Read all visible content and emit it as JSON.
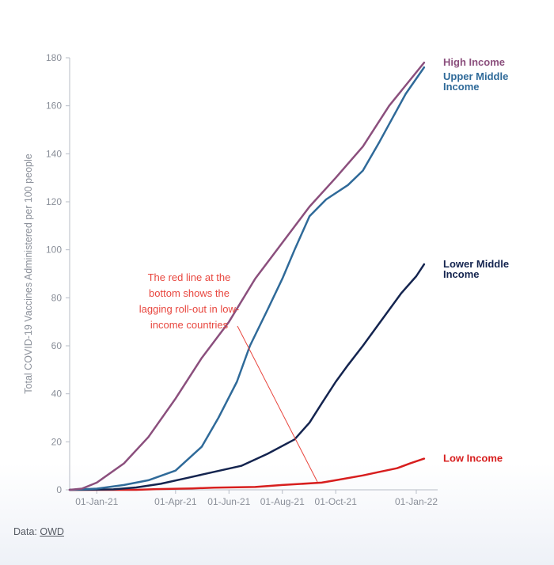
{
  "chart_data": {
    "type": "line",
    "title": "",
    "xlabel": "",
    "ylabel": "Total COVID-19 Vaccines Administered per 100 people",
    "ylim": [
      0,
      180
    ],
    "yticks": [
      0,
      20,
      40,
      60,
      80,
      100,
      120,
      140,
      160,
      180
    ],
    "xlim": [
      "2020-12-01",
      "2022-01-20"
    ],
    "xticks": [
      {
        "date": "2021-01-01",
        "label": "01-Jan-21"
      },
      {
        "date": "2021-04-01",
        "label": "01-Apr-21"
      },
      {
        "date": "2021-06-01",
        "label": "01-Jun-21"
      },
      {
        "date": "2021-08-01",
        "label": "01-Aug-21"
      },
      {
        "date": "2021-10-01",
        "label": "01-Oct-21"
      },
      {
        "date": "2022-01-01",
        "label": "01-Jan-22"
      }
    ],
    "grid": false,
    "series": [
      {
        "name": "Low Income",
        "label_lines": [
          "Low Income"
        ],
        "color": "#d71e1e",
        "points": [
          [
            "2020-12-01",
            0
          ],
          [
            "2021-02-15",
            0
          ],
          [
            "2021-03-10",
            0.3
          ],
          [
            "2021-04-20",
            0.6
          ],
          [
            "2021-05-15",
            0.9
          ],
          [
            "2021-07-01",
            1.2
          ],
          [
            "2021-08-01",
            2
          ],
          [
            "2021-09-15",
            3
          ],
          [
            "2021-10-01",
            4
          ],
          [
            "2021-11-01",
            6
          ],
          [
            "2021-11-20",
            7.5
          ],
          [
            "2021-12-10",
            9
          ],
          [
            "2021-12-25",
            11
          ],
          [
            "2022-01-10",
            13
          ]
        ]
      },
      {
        "name": "Lower Middle Income",
        "label_lines": [
          "Lower Middle",
          "Income"
        ],
        "color": "#14244f",
        "points": [
          [
            "2020-12-01",
            0
          ],
          [
            "2021-01-20",
            0.2
          ],
          [
            "2021-02-15",
            1
          ],
          [
            "2021-03-15",
            2.5
          ],
          [
            "2021-04-15",
            5
          ],
          [
            "2021-05-15",
            7.5
          ],
          [
            "2021-06-15",
            10
          ],
          [
            "2021-07-15",
            15
          ],
          [
            "2021-08-15",
            21
          ],
          [
            "2021-09-01",
            28
          ],
          [
            "2021-09-15",
            36
          ],
          [
            "2021-10-01",
            45
          ],
          [
            "2021-10-15",
            52
          ],
          [
            "2021-11-01",
            60
          ],
          [
            "2021-11-15",
            67
          ],
          [
            "2021-12-01",
            75
          ],
          [
            "2021-12-15",
            82
          ],
          [
            "2022-01-01",
            89
          ],
          [
            "2022-01-10",
            94
          ]
        ]
      },
      {
        "name": "Upper Middle Income",
        "label_lines": [
          "Upper Middle",
          "Income"
        ],
        "color": "#2f6a99",
        "points": [
          [
            "2020-12-01",
            0
          ],
          [
            "2021-01-01",
            0.5
          ],
          [
            "2021-02-01",
            2
          ],
          [
            "2021-03-01",
            4
          ],
          [
            "2021-04-01",
            8
          ],
          [
            "2021-05-01",
            18
          ],
          [
            "2021-05-20",
            30
          ],
          [
            "2021-06-10",
            45
          ],
          [
            "2021-06-25",
            60
          ],
          [
            "2021-07-15",
            75
          ],
          [
            "2021-08-01",
            88
          ],
          [
            "2021-08-15",
            100
          ],
          [
            "2021-09-01",
            114
          ],
          [
            "2021-09-20",
            121
          ],
          [
            "2021-10-15",
            127
          ],
          [
            "2021-11-01",
            133
          ],
          [
            "2021-11-20",
            145
          ],
          [
            "2021-12-05",
            155
          ],
          [
            "2021-12-20",
            165
          ],
          [
            "2022-01-10",
            176
          ]
        ]
      },
      {
        "name": "High Income",
        "label_lines": [
          "High Income"
        ],
        "color": "#8b4f7d",
        "points": [
          [
            "2020-12-01",
            0
          ],
          [
            "2020-12-15",
            0.5
          ],
          [
            "2021-01-01",
            3
          ],
          [
            "2021-02-01",
            11
          ],
          [
            "2021-03-01",
            22
          ],
          [
            "2021-04-01",
            38
          ],
          [
            "2021-05-01",
            55
          ],
          [
            "2021-06-01",
            70
          ],
          [
            "2021-07-01",
            88
          ],
          [
            "2021-08-01",
            103
          ],
          [
            "2021-09-01",
            118
          ],
          [
            "2021-10-01",
            130
          ],
          [
            "2021-11-01",
            143
          ],
          [
            "2021-12-01",
            160
          ],
          [
            "2022-01-10",
            178
          ]
        ]
      }
    ],
    "annotation": {
      "lines": [
        "The red line at the",
        "bottom shows the",
        "lagging roll-out in low-",
        "income countries"
      ],
      "color": "#e8473f",
      "points_to": [
        "2021-09-10",
        3
      ]
    }
  },
  "source": {
    "prefix": "Data: ",
    "link_text": "OWD"
  }
}
